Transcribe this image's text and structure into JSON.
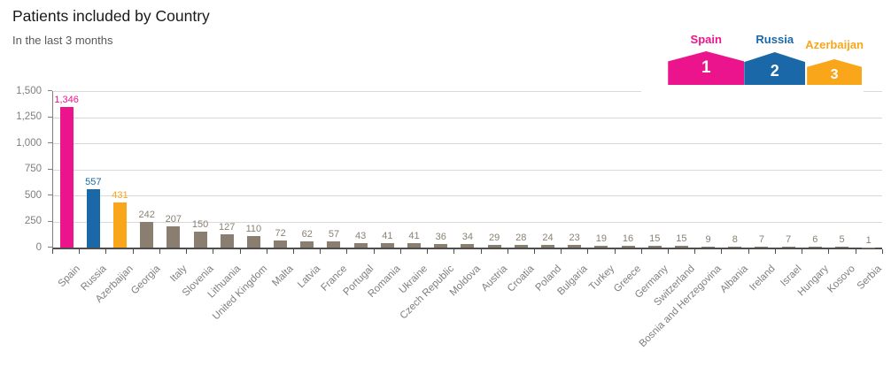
{
  "chart_data": {
    "type": "bar",
    "title": "Patients included by Country",
    "subtitle": "In the last 3 months",
    "categories": [
      "Spain",
      "Russia",
      "Azerbaijan",
      "Georgia",
      "Italy",
      "Slovenia",
      "Lithuania",
      "United Kingdom",
      "Malta",
      "Latvia",
      "France",
      "Portugal",
      "Romania",
      "Ukraine",
      "Czech Republic",
      "Moldova",
      "Austria",
      "Croatia",
      "Poland",
      "Bulgaria",
      "Turkey",
      "Greece",
      "Germany",
      "Switzerland",
      "Bosnia and Herzegovina",
      "Albania",
      "Ireland",
      "Israel",
      "Hungary",
      "Kosovo",
      "Serbia"
    ],
    "values": [
      1346,
      557,
      431,
      242,
      207,
      150,
      127,
      110,
      72,
      62,
      57,
      43,
      41,
      41,
      36,
      34,
      29,
      28,
      24,
      23,
      19,
      16,
      15,
      15,
      9,
      8,
      7,
      7,
      6,
      5,
      1
    ],
    "value_labels": [
      "1,346",
      "557",
      "431",
      "242",
      "207",
      "150",
      "127",
      "110",
      "72",
      "62",
      "57",
      "43",
      "41",
      "41",
      "36",
      "34",
      "29",
      "28",
      "24",
      "23",
      "19",
      "16",
      "15",
      "15",
      "9",
      "8",
      "7",
      "7",
      "6",
      "5",
      "1"
    ],
    "xlabel": "",
    "ylabel": "",
    "ylim": [
      0,
      1500
    ],
    "yticks": [
      0,
      250,
      500,
      750,
      1000,
      1250,
      1500
    ],
    "ytick_labels": [
      "0",
      "250",
      "500",
      "750",
      "1,000",
      "1,250",
      "1,500"
    ],
    "grid": "horizontal",
    "legend_position": "top-right",
    "bar_default_color": "#8A7E70",
    "value_label_default_color": "#8A8173",
    "highlight_colors": {
      "Spain": "#EC148C",
      "Russia": "#1A68A8",
      "Azerbaijan": "#FAA61A"
    }
  },
  "podium": {
    "items": [
      {
        "rank": "1",
        "label": "Spain",
        "color": "#EC148C"
      },
      {
        "rank": "2",
        "label": "Russia",
        "color": "#1A68A8"
      },
      {
        "rank": "3",
        "label": "Azerbaijan",
        "color": "#FAA61A"
      }
    ]
  }
}
